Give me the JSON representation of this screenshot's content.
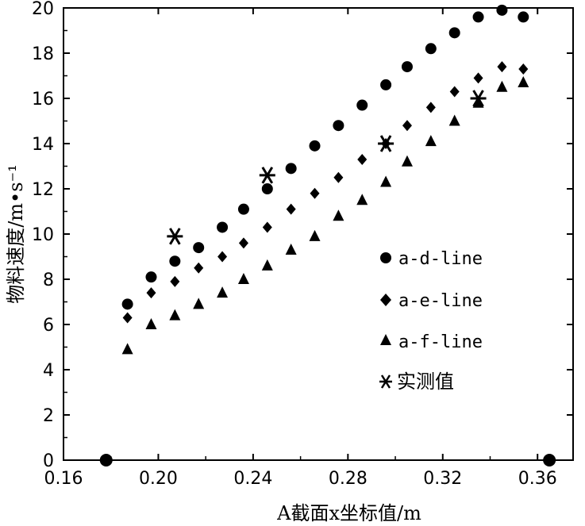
{
  "chart_data": {
    "type": "scatter",
    "xlabel": "A截面x坐标值/m",
    "ylabel": "物料速度/m•s⁻¹",
    "xlim": [
      0.16,
      0.375
    ],
    "ylim": [
      0,
      20
    ],
    "xticks": [
      "0.16",
      "0.20",
      "0.24",
      "0.28",
      "0.32",
      "0.36"
    ],
    "yticks": [
      "0",
      "2",
      "4",
      "6",
      "8",
      "10",
      "12",
      "14",
      "16",
      "18",
      "20"
    ],
    "legend_position": "center-right",
    "series": [
      {
        "name": "a-d-line",
        "marker": "circle",
        "x": [
          0.187,
          0.197,
          0.207,
          0.217,
          0.227,
          0.236,
          0.246,
          0.256,
          0.266,
          0.276,
          0.286,
          0.296,
          0.305,
          0.315,
          0.325,
          0.335,
          0.345,
          0.354
        ],
        "y": [
          6.9,
          8.1,
          8.8,
          9.4,
          10.3,
          11.1,
          12.0,
          12.9,
          13.9,
          14.8,
          15.7,
          16.6,
          17.4,
          18.2,
          18.9,
          19.6,
          19.9,
          19.6
        ]
      },
      {
        "name": "a-e-line",
        "marker": "diamond",
        "x": [
          0.187,
          0.197,
          0.207,
          0.217,
          0.227,
          0.236,
          0.246,
          0.256,
          0.266,
          0.276,
          0.286,
          0.296,
          0.305,
          0.315,
          0.325,
          0.335,
          0.345,
          0.354
        ],
        "y": [
          6.3,
          7.4,
          7.9,
          8.5,
          9.0,
          9.6,
          10.3,
          11.1,
          11.8,
          12.5,
          13.3,
          14.0,
          14.8,
          15.6,
          16.3,
          16.9,
          17.4,
          17.3
        ]
      },
      {
        "name": "a-f-line",
        "marker": "triangle",
        "x": [
          0.187,
          0.197,
          0.207,
          0.217,
          0.227,
          0.236,
          0.246,
          0.256,
          0.266,
          0.276,
          0.286,
          0.296,
          0.305,
          0.315,
          0.325,
          0.335,
          0.345,
          0.354
        ],
        "y": [
          4.9,
          6.0,
          6.4,
          6.9,
          7.4,
          8.0,
          8.6,
          9.3,
          9.9,
          10.8,
          11.5,
          12.3,
          13.2,
          14.1,
          15.0,
          15.8,
          16.5,
          16.7
        ]
      },
      {
        "name": "实测值",
        "marker": "asterisk",
        "x": [
          0.207,
          0.246,
          0.296,
          0.335
        ],
        "y": [
          9.9,
          12.6,
          14.0,
          16.0
        ]
      }
    ],
    "endpoints": {
      "marker": "large-circle",
      "x": [
        0.178,
        0.365
      ],
      "y": [
        0,
        0
      ]
    }
  }
}
